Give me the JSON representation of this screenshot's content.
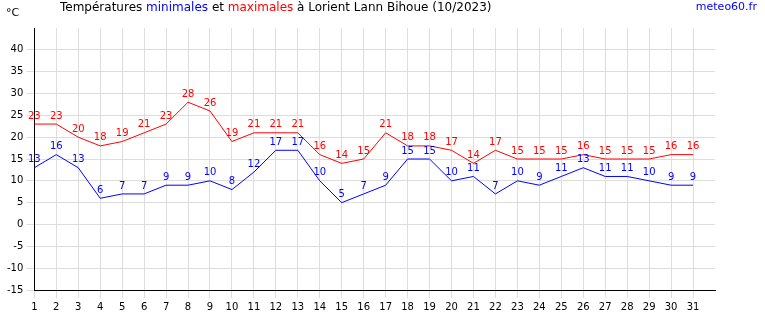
{
  "chart_data": {
    "type": "line",
    "title": "Températures minimales et maximales à Lorient Lann Bihoue (10/2023)",
    "source": "meteo60.fr",
    "y_label": "°C",
    "x": [
      1,
      2,
      3,
      4,
      5,
      6,
      7,
      8,
      9,
      10,
      11,
      12,
      13,
      14,
      15,
      16,
      17,
      18,
      19,
      20,
      21,
      22,
      23,
      24,
      25,
      26,
      27,
      28,
      29,
      30,
      31
    ],
    "series": [
      {
        "name": "minimales",
        "color": "#0000ff",
        "values": [
          13,
          16,
          13,
          6,
          7,
          7,
          9,
          9,
          10,
          8,
          12,
          17,
          17,
          10,
          5,
          7,
          9,
          15,
          15,
          10,
          11,
          7,
          10,
          9,
          11,
          13,
          11,
          11,
          10,
          9,
          9
        ]
      },
      {
        "name": "maximales",
        "color": "#ff0000",
        "values": [
          23,
          23,
          20,
          18,
          19,
          21,
          23,
          28,
          26,
          19,
          21,
          21,
          21,
          16,
          14,
          15,
          21,
          18,
          18,
          17,
          14,
          17,
          15,
          15,
          15,
          16,
          15,
          15,
          15,
          16,
          16
        ]
      }
    ],
    "xlim": [
      1,
      32
    ],
    "xticks": [
      1,
      2,
      3,
      4,
      5,
      6,
      7,
      8,
      9,
      10,
      11,
      12,
      13,
      14,
      15,
      16,
      17,
      18,
      19,
      20,
      21,
      22,
      23,
      24,
      25,
      26,
      27,
      28,
      29,
      30,
      31
    ],
    "ylim": [
      -15,
      45
    ],
    "yticks": [
      -15,
      -10,
      -5,
      0,
      5,
      10,
      15,
      20,
      25,
      30,
      35,
      40
    ],
    "grid": true,
    "data_labels": true,
    "legend": false
  }
}
